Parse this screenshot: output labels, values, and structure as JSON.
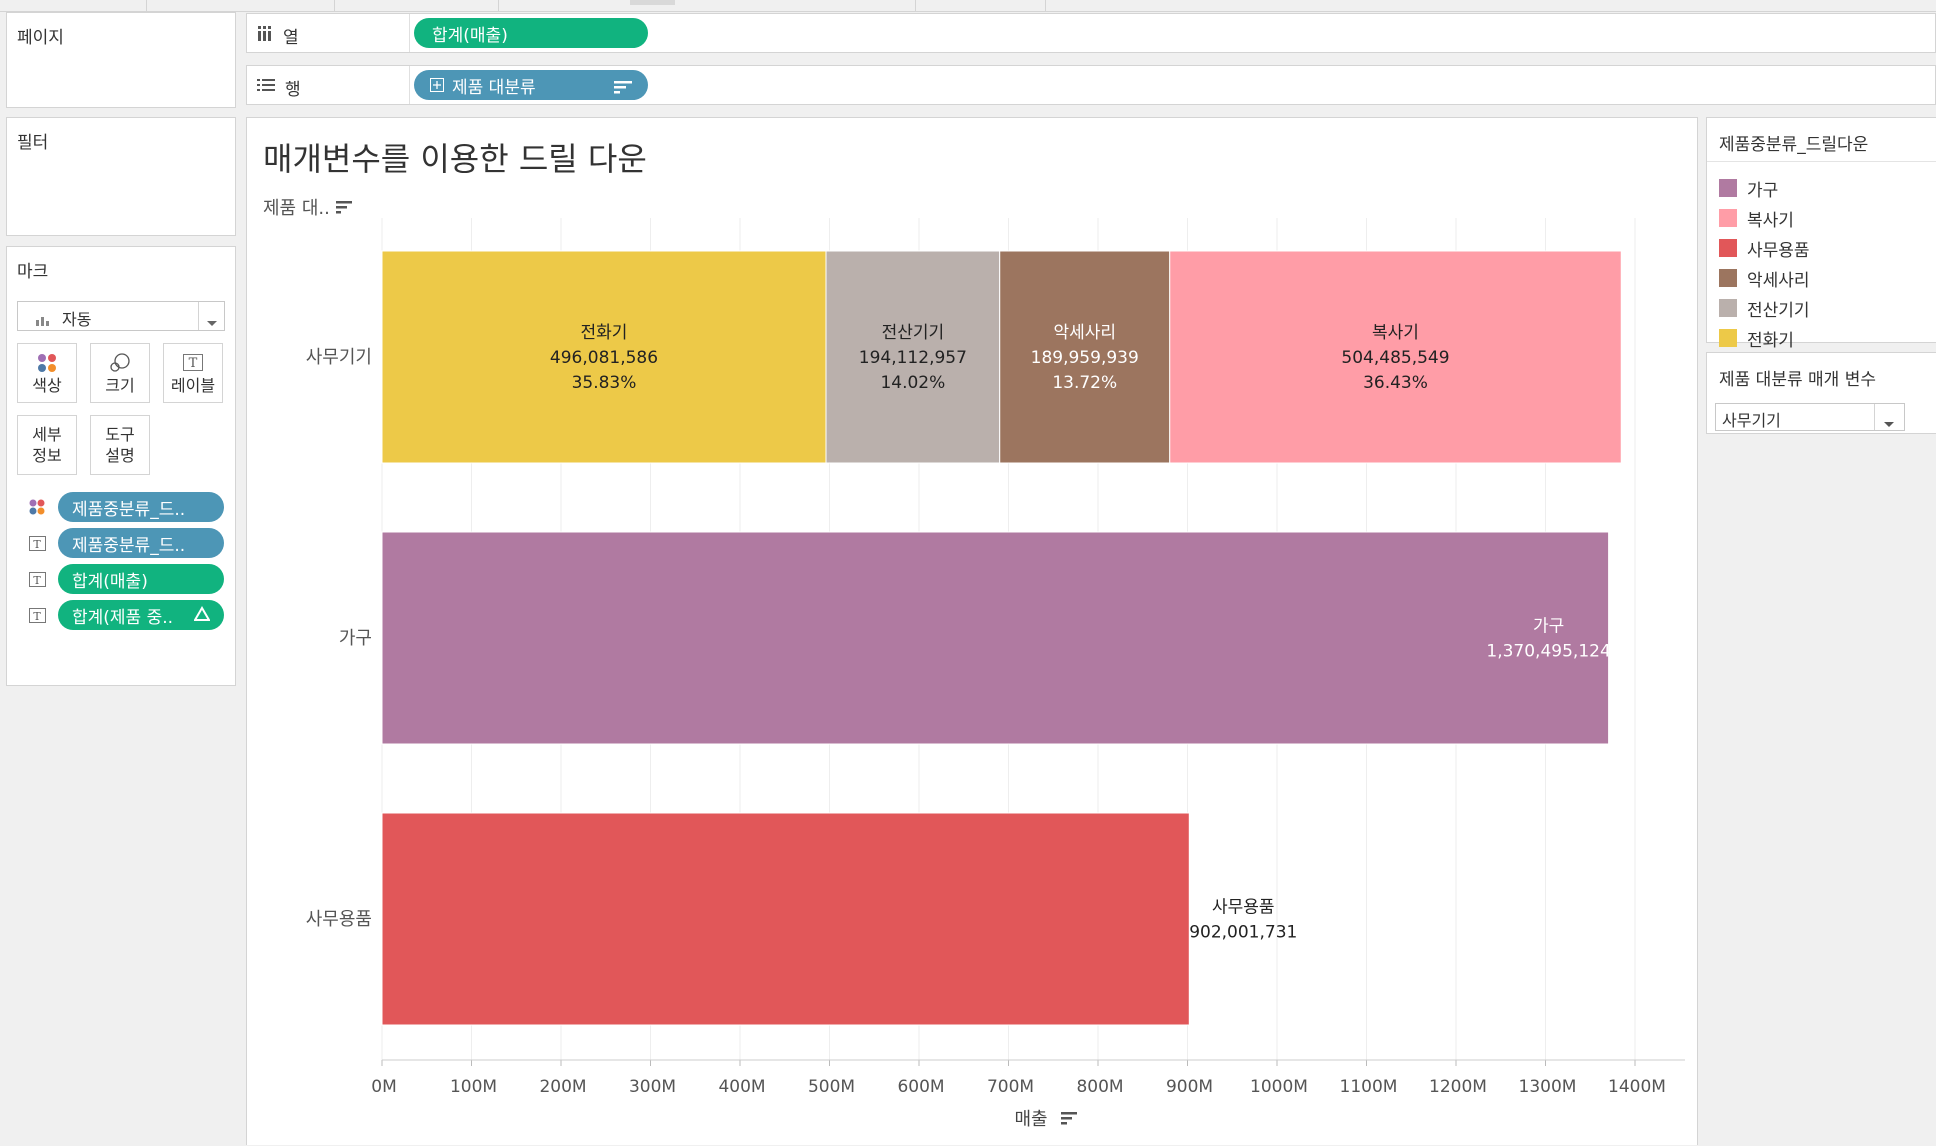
{
  "pages_panel": {
    "title": "페이지"
  },
  "filters_panel": {
    "title": "필터"
  },
  "marks_panel": {
    "title": "마크",
    "mark_type": "자동",
    "buttons": [
      "색상",
      "크기",
      "레이블",
      "세부\n정보",
      "도구\n설명"
    ],
    "pills": [
      {
        "icon": "color-dots-icon",
        "label": "제품중분류_드..",
        "color": "#4d96b6"
      },
      {
        "icon": "text-label-icon",
        "label": "제품중분류_드..",
        "color": "#4d96b6"
      },
      {
        "icon": "text-label-icon",
        "label": "합계(매출)",
        "color": "#11b37f"
      },
      {
        "icon": "text-label-icon",
        "label": "합계(제품 중..",
        "color": "#11b37f"
      }
    ]
  },
  "columns_shelf": {
    "label": "열",
    "pill": "합계(매출)"
  },
  "rows_shelf": {
    "label": "행",
    "pill": "제품 대분류"
  },
  "legend": {
    "title": "제품중분류_드릴다운",
    "items": [
      {
        "label": "가구",
        "color": "#b07aa1"
      },
      {
        "label": "복사기",
        "color": "#ff9da7"
      },
      {
        "label": "사무용품",
        "color": "#e15759"
      },
      {
        "label": "악세사리",
        "color": "#9c755f"
      },
      {
        "label": "전산기기",
        "color": "#bab0ac"
      },
      {
        "label": "전화기",
        "color": "#edc948"
      }
    ]
  },
  "parameter": {
    "title": "제품 대분류 매개 변수",
    "value": "사무기기"
  },
  "sheet": {
    "title": "매개변수를 이용한 드릴 다운",
    "row_header": "제품 대.."
  },
  "chart_data": {
    "type": "bar",
    "orientation": "horizontal-stacked",
    "xlabel": "매출",
    "xlim": [
      0,
      1450000000
    ],
    "xticks": [
      0,
      100000000,
      200000000,
      300000000,
      400000000,
      500000000,
      600000000,
      700000000,
      800000000,
      900000000,
      1000000000,
      1100000000,
      1200000000,
      1300000000,
      1400000000
    ],
    "xtick_labels": [
      "0M",
      "100M",
      "200M",
      "300M",
      "400M",
      "500M",
      "600M",
      "700M",
      "800M",
      "900M",
      "1000M",
      "1100M",
      "1200M",
      "1300M",
      "1400M"
    ],
    "categories": [
      "사무기기",
      "가구",
      "사무용품"
    ],
    "bars": [
      {
        "category": "사무기기",
        "segments": [
          {
            "name": "전화기",
            "value": 496081586,
            "value_label": "496,081,586",
            "pct_label": "35.83%",
            "color": "#edc948",
            "text_color": "#222222"
          },
          {
            "name": "전산기기",
            "value": 194112957,
            "value_label": "194,112,957",
            "pct_label": "14.02%",
            "color": "#bab0ac",
            "text_color": "#222222"
          },
          {
            "name": "악세사리",
            "value": 189959939,
            "value_label": "189,959,939",
            "pct_label": "13.72%",
            "color": "#9c755f",
            "text_color": "#ffffff"
          },
          {
            "name": "복사기",
            "value": 504485549,
            "value_label": "504,485,549",
            "pct_label": "36.43%",
            "color": "#ff9da7",
            "text_color": "#222222"
          }
        ]
      },
      {
        "category": "가구",
        "segments": [
          {
            "name": "가구",
            "value": 1370495124,
            "value_label": "1,370,495,124",
            "color": "#b07aa1",
            "text_color": "#ffffff",
            "label_position": "inside-end"
          }
        ]
      },
      {
        "category": "사무용품",
        "segments": [
          {
            "name": "사무용품",
            "value": 902001731,
            "value_label": "902,001,731",
            "color": "#e15759",
            "text_color": "#222222",
            "label_position": "outside-end"
          }
        ]
      }
    ]
  }
}
